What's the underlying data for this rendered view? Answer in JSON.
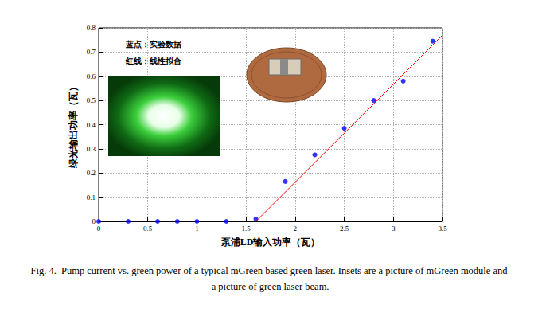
{
  "chart_data": {
    "type": "scatter",
    "x_label": "泵浦LD输入功率（瓦）",
    "y_label": "绿光输出功率（瓦）",
    "annotations": [
      "蓝点：实验数据",
      "红线：线性拟合"
    ],
    "caption": "Fig. 4.  Pump current vs. green power of a typical mGreen based green laser. Insets are a picture of mGreen module and a picture of green laser beam.",
    "xlim": [
      0,
      3.5
    ],
    "xticks": [
      0,
      0.5,
      1,
      1.5,
      2,
      2.5,
      3,
      3.5
    ],
    "ylim": [
      0,
      0.8
    ],
    "yticks": [
      0,
      0.1,
      0.2,
      0.3,
      0.4,
      0.5,
      0.6,
      0.7,
      0.8
    ],
    "grid": true,
    "series": [
      {
        "type": "scatter",
        "color": "#0000ff",
        "marker": "circle",
        "x": [
          0,
          0.3,
          0.6,
          0.8,
          1.0,
          1.3,
          1.6,
          1.9,
          2.2,
          2.5,
          2.8,
          3.1,
          3.4
        ],
        "values": [
          0,
          0,
          0,
          0,
          0,
          0,
          0.01,
          0.165,
          0.275,
          0.385,
          0.5,
          0.58,
          0.745
        ]
      },
      {
        "type": "line",
        "color": "#ff0000",
        "line_style": "solid",
        "x": [
          1.6,
          3.5
        ],
        "values": [
          0,
          0.77
        ]
      }
    ]
  }
}
